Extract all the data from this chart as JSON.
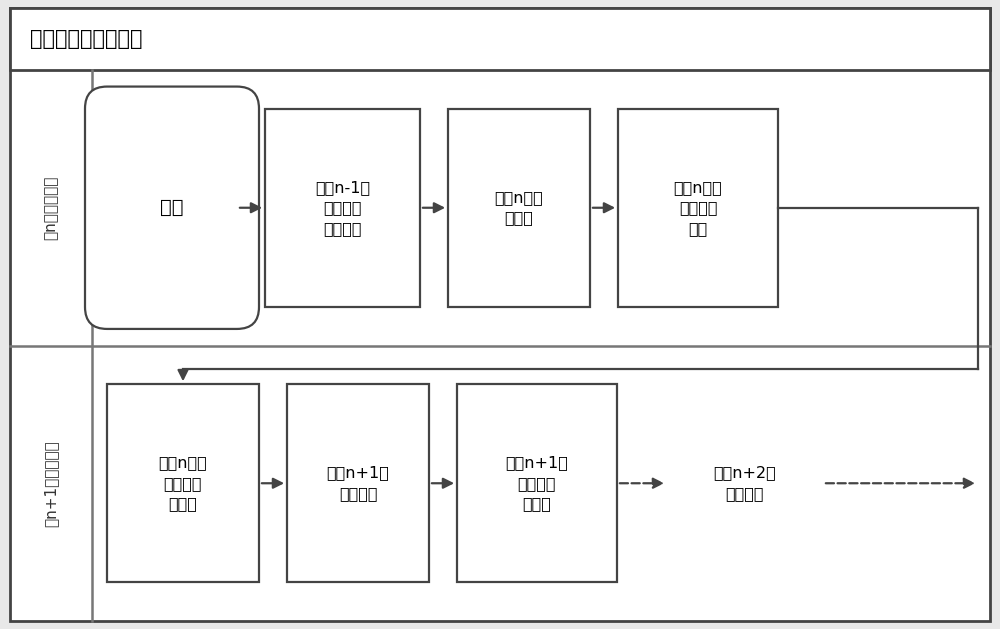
{
  "title": "滚动式动态任务规划",
  "row1_label": "第n轮任务规划",
  "row2_label": "第n+1次任务规划",
  "start_node": "开始",
  "row1_boxes": [
    "获取n-1轮\n任务规划\n结束状态",
    "开始n轮任\n务规划",
    "记录n轮任\n务规划后\n状态"
  ],
  "row2_boxes": [
    "获取n轮任\n务规划结\n束状态",
    "开始n+1轮\n任务规划",
    "记录n+1轮\n任务规划\n后状态",
    "转入n+2轮\n任务规划"
  ],
  "bg_color": "#e8e8e8",
  "box_fill": "#ffffff",
  "box_edge": "#444444",
  "arrow_color": "#444444",
  "title_color": "#000000",
  "text_color": "#000000",
  "label_color": "#333333",
  "outer_border_color": "#444444",
  "section_line_color": "#777777",
  "figsize": [
    10.0,
    6.29
  ],
  "dpi": 100
}
